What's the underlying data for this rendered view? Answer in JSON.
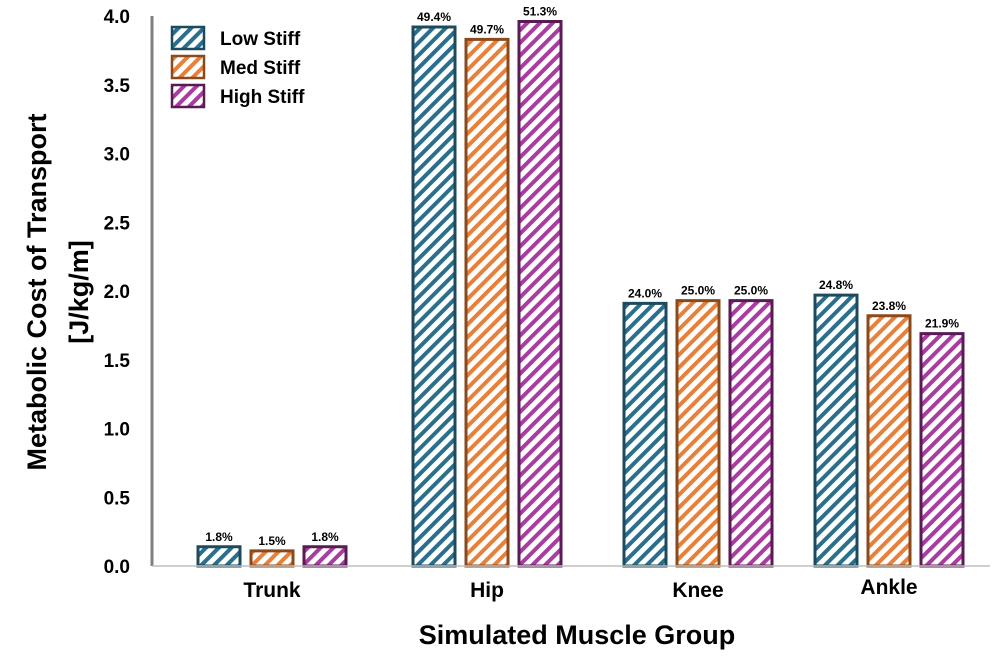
{
  "chart_data": {
    "type": "bar",
    "title": "",
    "xlabel": "Simulated Muscle Group",
    "ylabel_line1": "Metabolic Cost of Transport",
    "ylabel_line2": "[J/kg/m]",
    "ylim": [
      0,
      4.0
    ],
    "yticks": [
      "0.0",
      "0.5",
      "1.0",
      "1.5",
      "2.0",
      "2.5",
      "3.0",
      "3.5",
      "4.0"
    ],
    "categories": [
      "Trunk",
      "Hip",
      "Knee",
      "Ankle"
    ],
    "legend_position": "top-left",
    "grid": false,
    "series": [
      {
        "name": "Low Stiff",
        "stroke": "#1d4a5e",
        "hatch": "#2a6f8c",
        "values": [
          0.14,
          3.92,
          1.91,
          1.97
        ],
        "labels": [
          "1.8%",
          "49.4%",
          "24.0%",
          "24.8%"
        ]
      },
      {
        "name": "Med Stiff",
        "stroke": "#8a4a1c",
        "hatch": "#e8803a",
        "values": [
          0.11,
          3.83,
          1.93,
          1.82
        ],
        "labels": [
          "1.5%",
          "49.7%",
          "25.0%",
          "23.8%"
        ]
      },
      {
        "name": "High Stiff",
        "stroke": "#5a1a55",
        "hatch": "#a83ca0",
        "values": [
          0.14,
          3.96,
          1.93,
          1.69
        ],
        "labels": [
          "1.8%",
          "51.3%",
          "25.0%",
          "21.9%"
        ]
      }
    ]
  }
}
